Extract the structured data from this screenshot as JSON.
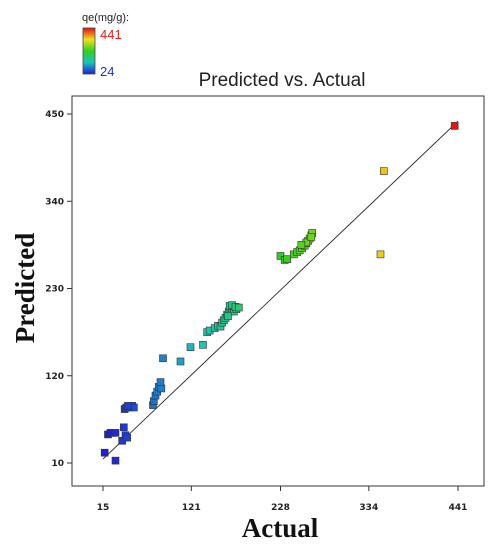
{
  "chart_data": {
    "type": "scatter",
    "title": "Predicted vs. Actual",
    "xlabel": "Actual",
    "ylabel": "Predicted",
    "xlim": [
      15,
      441
    ],
    "ylim": [
      10,
      450
    ],
    "x_ticks": [
      "15",
      "121",
      "228",
      "334",
      "441"
    ],
    "y_ticks": [
      "10",
      "120",
      "230",
      "340",
      "450"
    ],
    "grid": false,
    "reference_line": "y = x",
    "color_legend": {
      "label": "qe(mg/g):",
      "max": "441",
      "min": "24",
      "placement": "top-left",
      "colors": [
        "#e01010",
        "#f0e020",
        "#30d020",
        "#20c0c0",
        "#2020d0"
      ]
    },
    "points": [
      [
        17,
        23
      ],
      [
        21,
        46
      ],
      [
        24,
        48
      ],
      [
        30,
        48
      ],
      [
        30,
        13
      ],
      [
        38,
        38
      ],
      [
        42,
        45
      ],
      [
        40,
        55
      ],
      [
        44,
        42
      ],
      [
        41,
        78
      ],
      [
        43,
        80
      ],
      [
        47,
        80
      ],
      [
        50,
        82
      ],
      [
        52,
        80
      ],
      [
        45,
        82
      ],
      [
        75,
        83
      ],
      [
        76,
        88
      ],
      [
        78,
        95
      ],
      [
        80,
        100
      ],
      [
        82,
        106
      ],
      [
        85,
        104
      ],
      [
        84,
        112
      ],
      [
        87,
        142
      ],
      [
        108,
        138
      ],
      [
        120,
        156
      ],
      [
        135,
        159
      ],
      [
        140,
        175
      ],
      [
        143,
        177
      ],
      [
        149,
        180
      ],
      [
        153,
        183
      ],
      [
        156,
        182
      ],
      [
        158,
        187
      ],
      [
        160,
        190
      ],
      [
        162,
        193
      ],
      [
        164,
        197
      ],
      [
        166,
        201
      ],
      [
        168,
        203
      ],
      [
        170,
        205
      ],
      [
        172,
        201
      ],
      [
        175,
        204
      ],
      [
        167,
        208
      ],
      [
        170,
        209
      ],
      [
        174,
        207
      ],
      [
        178,
        206
      ],
      [
        165,
        195
      ],
      [
        228,
        271
      ],
      [
        233,
        266
      ],
      [
        236,
        267
      ],
      [
        244,
        273
      ],
      [
        248,
        276
      ],
      [
        251,
        278
      ],
      [
        254,
        281
      ],
      [
        257,
        284
      ],
      [
        259,
        287
      ],
      [
        261,
        290
      ],
      [
        263,
        293
      ],
      [
        265,
        297
      ],
      [
        266,
        300
      ],
      [
        259,
        288
      ],
      [
        253,
        285
      ],
      [
        265,
        295
      ],
      [
        348,
        273
      ],
      [
        352,
        378
      ],
      [
        437,
        435
      ]
    ]
  }
}
